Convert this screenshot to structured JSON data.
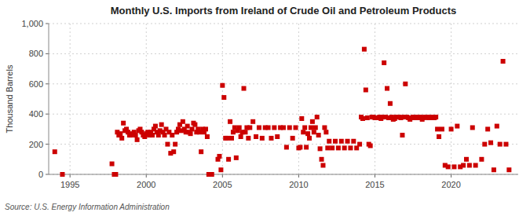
{
  "chart_data": {
    "type": "scatter",
    "title": "Monthly U.S. Imports from Ireland of Crude Oil and Petroleum Products",
    "y_label": "Thousand Barrels",
    "source": "Source: U.S. Energy Information Administration",
    "color": "#cc0000",
    "marker": "square",
    "grid": true,
    "xlim": [
      1993.6,
      2024.4
    ],
    "ylim": [
      0,
      1000
    ],
    "xticks": [
      1995,
      2000,
      2005,
      2010,
      2015,
      2020
    ],
    "yticks": [
      0,
      200,
      400,
      600,
      800,
      {
        "value": 1000,
        "label": "1,000"
      }
    ],
    "x": [
      1994.0,
      1994.5,
      1997.75,
      1997.9,
      1998.0,
      1998.1,
      1998.2,
      1998.3,
      1998.4,
      1998.5,
      1998.6,
      1998.7,
      1998.8,
      1998.9,
      1999.0,
      1999.1,
      1999.2,
      1999.3,
      1999.4,
      1999.5,
      1999.6,
      1999.7,
      1999.8,
      1999.9,
      2000.0,
      2000.1,
      2000.2,
      2000.3,
      2000.4,
      2000.5,
      2000.6,
      2000.7,
      2000.8,
      2000.9,
      2001.0,
      2001.1,
      2001.2,
      2001.3,
      2001.4,
      2001.5,
      2001.6,
      2001.7,
      2001.8,
      2001.9,
      2002.0,
      2002.1,
      2002.2,
      2002.3,
      2002.4,
      2002.5,
      2002.6,
      2002.7,
      2002.8,
      2002.9,
      2003.0,
      2003.1,
      2003.2,
      2003.3,
      2003.4,
      2003.5,
      2003.6,
      2003.7,
      2003.8,
      2003.9,
      2004.0,
      2004.1,
      2004.2,
      2004.3,
      2004.7,
      2004.8,
      2004.9,
      2005.0,
      2005.1,
      2005.2,
      2005.3,
      2005.4,
      2005.5,
      2005.6,
      2005.7,
      2005.8,
      2005.9,
      2006.0,
      2006.1,
      2006.2,
      2006.3,
      2006.4,
      2006.5,
      2006.6,
      2006.7,
      2006.8,
      2007.0,
      2007.2,
      2007.4,
      2007.6,
      2007.8,
      2008.0,
      2008.2,
      2008.4,
      2008.6,
      2008.8,
      2009.0,
      2009.2,
      2009.4,
      2009.6,
      2009.8,
      2010.0,
      2010.1,
      2010.2,
      2010.3,
      2010.4,
      2010.5,
      2010.6,
      2010.7,
      2010.8,
      2010.9,
      2011.0,
      2011.1,
      2011.2,
      2011.3,
      2011.4,
      2011.5,
      2011.6,
      2011.7,
      2011.8,
      2011.9,
      2012.0,
      2012.2,
      2012.4,
      2012.6,
      2012.8,
      2013.0,
      2013.2,
      2013.4,
      2013.6,
      2013.8,
      2014.0,
      2014.1,
      2014.2,
      2014.3,
      2014.4,
      2014.5,
      2014.6,
      2014.7,
      2014.8,
      2014.9,
      2015.0,
      2015.1,
      2015.2,
      2015.3,
      2015.4,
      2015.5,
      2015.6,
      2015.7,
      2015.8,
      2015.9,
      2016.0,
      2016.1,
      2016.2,
      2016.3,
      2016.4,
      2016.5,
      2016.6,
      2016.7,
      2016.8,
      2016.9,
      2017.0,
      2017.1,
      2017.2,
      2017.3,
      2017.4,
      2017.5,
      2017.6,
      2017.7,
      2017.8,
      2017.9,
      2018.0,
      2018.1,
      2018.2,
      2018.3,
      2018.4,
      2018.5,
      2018.6,
      2018.7,
      2018.8,
      2018.9,
      2019.0,
      2019.1,
      2019.2,
      2019.4,
      2019.6,
      2019.8,
      2020.0,
      2020.2,
      2020.4,
      2020.6,
      2020.8,
      2021.0,
      2021.2,
      2021.4,
      2021.6,
      2022.0,
      2022.2,
      2022.4,
      2022.6,
      2022.8,
      2023.0,
      2023.2,
      2023.4,
      2023.6,
      2023.8
    ],
    "values": [
      150,
      0,
      70,
      0,
      0,
      280,
      260,
      270,
      240,
      340,
      290,
      300,
      280,
      260,
      260,
      270,
      280,
      260,
      230,
      290,
      300,
      280,
      260,
      250,
      270,
      280,
      260,
      280,
      260,
      300,
      320,
      280,
      260,
      290,
      330,
      280,
      260,
      300,
      200,
      280,
      140,
      260,
      150,
      200,
      280,
      300,
      330,
      290,
      350,
      300,
      280,
      320,
      280,
      270,
      300,
      340,
      330,
      280,
      300,
      280,
      150,
      300,
      280,
      300,
      250,
      0,
      0,
      0,
      100,
      120,
      30,
      590,
      510,
      240,
      240,
      100,
      350,
      240,
      280,
      310,
      110,
      290,
      310,
      250,
      280,
      570,
      280,
      310,
      240,
      310,
      350,
      250,
      310,
      240,
      310,
      310,
      240,
      310,
      250,
      310,
      310,
      180,
      310,
      240,
      310,
      175,
      180,
      370,
      280,
      310,
      180,
      270,
      240,
      310,
      350,
      280,
      310,
      380,
      260,
      170,
      100,
      60,
      310,
      280,
      175,
      220,
      175,
      220,
      175,
      220,
      175,
      220,
      175,
      220,
      175,
      200,
      380,
      370,
      830,
      560,
      375,
      200,
      190,
      380,
      380,
      375,
      375,
      375,
      380,
      370,
      380,
      740,
      380,
      570,
      375,
      470,
      380,
      365,
      370,
      380,
      380,
      380,
      375,
      260,
      380,
      600,
      380,
      375,
      365,
      375,
      380,
      380,
      375,
      380,
      375,
      380,
      365,
      375,
      380,
      380,
      375,
      380,
      375,
      380,
      375,
      380,
      300,
      250,
      300,
      60,
      50,
      300,
      50,
      320,
      50,
      60,
      100,
      60,
      310,
      60,
      100,
      200,
      300,
      210,
      30,
      320,
      200,
      750,
      200,
      30
    ]
  }
}
